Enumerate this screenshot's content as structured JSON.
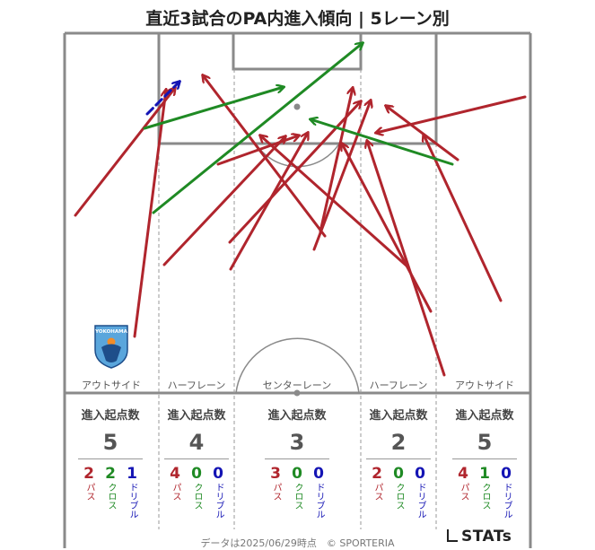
{
  "title": "直近3試合のPA内進入傾向 | 5レーン別",
  "footer": "データは2025/06/29時点　© SPORTERIA",
  "brand": "STATs",
  "badge_text": "YOKOHAMA",
  "colors": {
    "pass": "#b0252d",
    "cross": "#1f8a24",
    "dribble": "#1414b4",
    "line": "#8a8a8a"
  },
  "lanes": [
    {
      "label": "アウトサイド",
      "heading": "進入起点数",
      "total": "5",
      "pass": "2",
      "cross": "2",
      "dribble": "1",
      "pass_label": "パス",
      "cross_label": "クロス",
      "dribble_label": "ドリブル"
    },
    {
      "label": "ハーフレーン",
      "heading": "進入起点数",
      "total": "4",
      "pass": "4",
      "cross": "0",
      "dribble": "0",
      "pass_label": "パス",
      "cross_label": "クロス",
      "dribble_label": "ドリブル"
    },
    {
      "label": "センターレーン",
      "heading": "進入起点数",
      "total": "3",
      "pass": "3",
      "cross": "0",
      "dribble": "0",
      "pass_label": "パス",
      "cross_label": "クロス",
      "dribble_label": "ドリブル"
    },
    {
      "label": "ハーフレーン",
      "heading": "進入起点数",
      "total": "2",
      "pass": "2",
      "cross": "0",
      "dribble": "0",
      "pass_label": "パス",
      "cross_label": "クロス",
      "dribble_label": "ドリブル"
    },
    {
      "label": "アウトサイド",
      "heading": "進入起点数",
      "total": "5",
      "pass": "4",
      "cross": "1",
      "dribble": "0",
      "pass_label": "パス",
      "cross_label": "クロス",
      "dribble_label": "ドリブル"
    }
  ],
  "chart_data": {
    "type": "scatter",
    "arrows": [
      {
        "kind": "pass",
        "from": [
          84,
          240
        ],
        "to": [
          195,
          98
        ]
      },
      {
        "kind": "pass",
        "from": [
          150,
          375
        ],
        "to": [
          185,
          100
        ]
      },
      {
        "kind": "pass",
        "from": [
          183,
          295
        ],
        "to": [
          318,
          152
        ]
      },
      {
        "kind": "pass",
        "from": [
          257,
          300
        ],
        "to": [
          343,
          148
        ]
      },
      {
        "kind": "pass",
        "from": [
          256,
          270
        ],
        "to": [
          402,
          113
        ]
      },
      {
        "kind": "pass",
        "from": [
          243,
          183
        ],
        "to": [
          333,
          151
        ]
      },
      {
        "kind": "pass",
        "from": [
          362,
          263
        ],
        "to": [
          226,
          84
        ]
      },
      {
        "kind": "pass",
        "from": [
          357,
          258
        ],
        "to": [
          393,
          98
        ]
      },
      {
        "kind": "pass",
        "from": [
          350,
          278
        ],
        "to": [
          413,
          112
        ]
      },
      {
        "kind": "pass",
        "from": [
          455,
          298
        ],
        "to": [
          290,
          151
        ]
      },
      {
        "kind": "pass",
        "from": [
          480,
          347
        ],
        "to": [
          381,
          160
        ]
      },
      {
        "kind": "pass",
        "from": [
          495,
          418
        ],
        "to": [
          409,
          157
        ]
      },
      {
        "kind": "pass",
        "from": [
          558,
          335
        ],
        "to": [
          472,
          150
        ]
      },
      {
        "kind": "pass",
        "from": [
          510,
          178
        ],
        "to": [
          430,
          118
        ]
      },
      {
        "kind": "pass",
        "from": [
          585,
          108
        ],
        "to": [
          419,
          148
        ]
      },
      {
        "kind": "cross",
        "from": [
          161,
          143
        ],
        "to": [
          316,
          97
        ]
      },
      {
        "kind": "cross",
        "from": [
          171,
          237
        ],
        "to": [
          404,
          48
        ]
      },
      {
        "kind": "cross",
        "from": [
          504,
          183
        ],
        "to": [
          346,
          133
        ]
      },
      {
        "kind": "dribble",
        "from": [
          164,
          127
        ],
        "to": [
          200,
          91
        ]
      }
    ]
  }
}
